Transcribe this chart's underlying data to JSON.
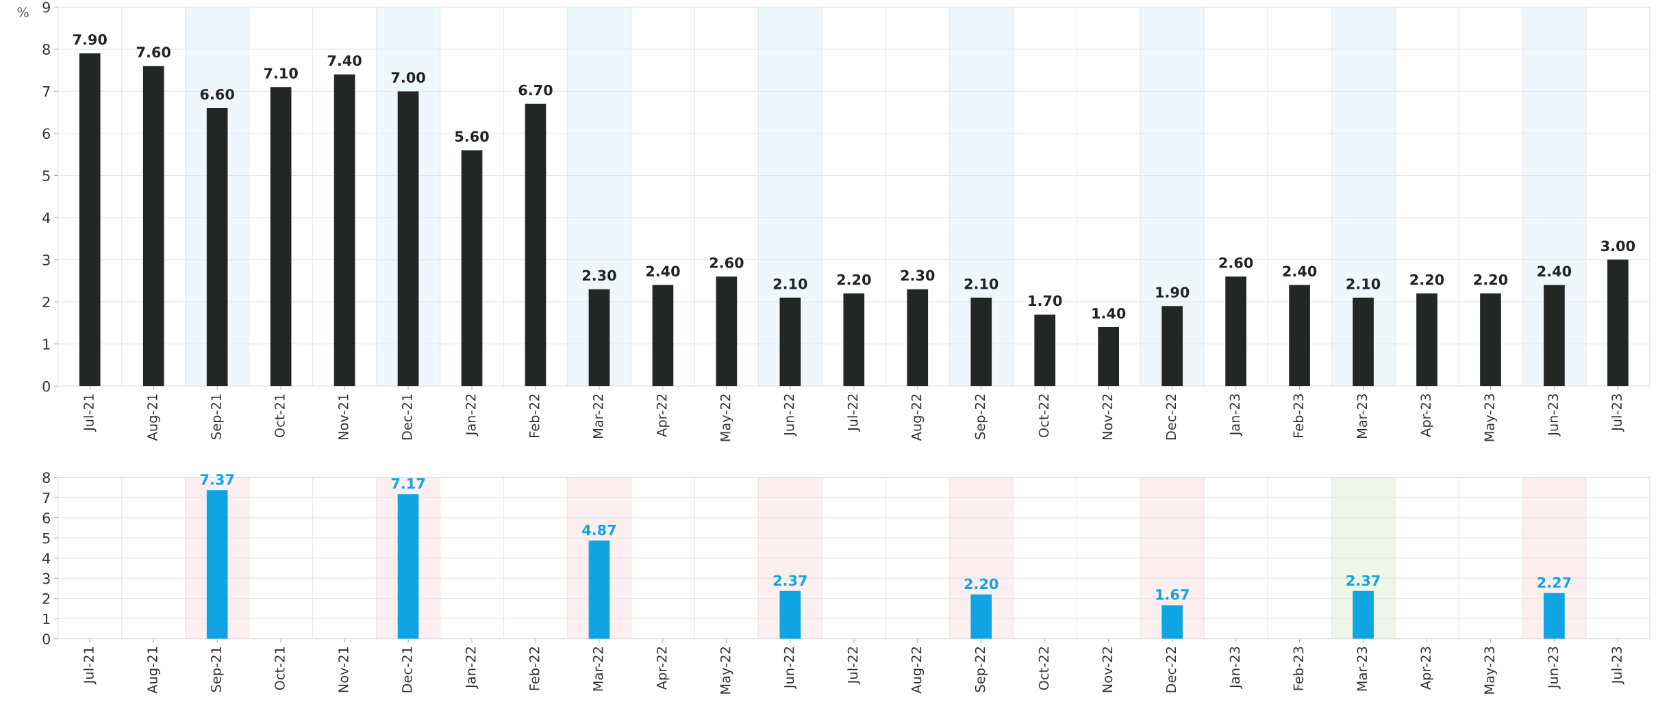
{
  "chart_data": [
    {
      "type": "bar",
      "ylabel": "%",
      "categories": [
        "Jul-21",
        "Aug-21",
        "Sep-21",
        "Oct-21",
        "Nov-21",
        "Dec-21",
        "Jan-22",
        "Feb-22",
        "Mar-22",
        "Apr-22",
        "May-22",
        "Jun-22",
        "Jul-22",
        "Aug-22",
        "Sep-22",
        "Oct-22",
        "Nov-22",
        "Dec-22",
        "Jan-23",
        "Feb-23",
        "Mar-23",
        "Apr-23",
        "May-23",
        "Jun-23",
        "Jul-23"
      ],
      "series": [
        {
          "color": "#222726",
          "values": [
            7.9,
            7.6,
            6.6,
            7.1,
            7.4,
            7.0,
            5.6,
            6.7,
            2.3,
            2.4,
            2.6,
            2.1,
            2.2,
            2.3,
            2.1,
            1.7,
            1.4,
            1.9,
            2.6,
            2.4,
            2.1,
            2.2,
            2.2,
            2.4,
            3.0
          ],
          "value_labels": [
            "7.90",
            "7.60",
            "6.60",
            "7.10",
            "7.40",
            "7.00",
            "5.60",
            "6.70",
            "2.30",
            "2.40",
            "2.60",
            "2.10",
            "2.20",
            "2.30",
            "2.10",
            "1.70",
            "1.40",
            "1.90",
            "2.60",
            "2.40",
            "2.10",
            "2.20",
            "2.20",
            "2.40",
            "3.00"
          ]
        }
      ],
      "ylim": [
        0,
        9
      ],
      "yticks": [
        0,
        1,
        2,
        3,
        4,
        5,
        6,
        7,
        8,
        9
      ],
      "grid": true,
      "bands": [
        {
          "axis": "x",
          "from": "Sep-21",
          "to": "Sep-21",
          "color": "#eef7fc"
        },
        {
          "axis": "x",
          "from": "Dec-21",
          "to": "Dec-21",
          "color": "#eef7fc"
        },
        {
          "axis": "x",
          "from": "Mar-22",
          "to": "Mar-22",
          "color": "#eef7fc"
        },
        {
          "axis": "x",
          "from": "Jun-22",
          "to": "Jun-22",
          "color": "#eef7fc"
        },
        {
          "axis": "x",
          "from": "Sep-22",
          "to": "Sep-22",
          "color": "#eef7fc"
        },
        {
          "axis": "x",
          "from": "Dec-22",
          "to": "Dec-22",
          "color": "#eef7fc"
        },
        {
          "axis": "x",
          "from": "Mar-23",
          "to": "Mar-23",
          "color": "#eef7fc"
        },
        {
          "axis": "x",
          "from": "Jun-23",
          "to": "Jun-23",
          "color": "#eef7fc"
        }
      ]
    },
    {
      "type": "bar",
      "categories": [
        "Jul-21",
        "Aug-21",
        "Sep-21",
        "Oct-21",
        "Nov-21",
        "Dec-21",
        "Jan-22",
        "Feb-22",
        "Mar-22",
        "Apr-22",
        "May-22",
        "Jun-22",
        "Jul-22",
        "Aug-22",
        "Sep-22",
        "Oct-22",
        "Nov-22",
        "Dec-22",
        "Jan-23",
        "Feb-23",
        "Mar-23",
        "Apr-23",
        "May-23",
        "Jun-23",
        "Jul-23"
      ],
      "series": [
        {
          "color": "#0ea5e2",
          "values": [
            null,
            null,
            7.37,
            null,
            null,
            7.17,
            null,
            null,
            4.87,
            null,
            null,
            2.37,
            null,
            null,
            2.2,
            null,
            null,
            1.67,
            null,
            null,
            2.37,
            null,
            null,
            2.27,
            null
          ],
          "value_labels": [
            null,
            null,
            "7.37",
            null,
            null,
            "7.17",
            null,
            null,
            "4.87",
            null,
            null,
            "2.37",
            null,
            null,
            "2.20",
            null,
            null,
            "1.67",
            null,
            null,
            "2.37",
            null,
            null,
            "2.27",
            null
          ]
        }
      ],
      "ylim": [
        0,
        8
      ],
      "yticks": [
        0,
        1,
        2,
        3,
        4,
        5,
        6,
        7,
        8
      ],
      "grid": true,
      "bands": [
        {
          "axis": "x",
          "from": "Sep-21",
          "to": "Sep-21",
          "color": "#fdefef"
        },
        {
          "axis": "x",
          "from": "Dec-21",
          "to": "Dec-21",
          "color": "#fdefef"
        },
        {
          "axis": "x",
          "from": "Mar-22",
          "to": "Mar-22",
          "color": "#fdefef"
        },
        {
          "axis": "x",
          "from": "Jun-22",
          "to": "Jun-22",
          "color": "#fdefef"
        },
        {
          "axis": "x",
          "from": "Sep-22",
          "to": "Sep-22",
          "color": "#fdefef"
        },
        {
          "axis": "x",
          "from": "Dec-22",
          "to": "Dec-22",
          "color": "#fdefef"
        },
        {
          "axis": "x",
          "from": "Mar-23",
          "to": "Mar-23",
          "color": "#eef6ea"
        },
        {
          "axis": "x",
          "from": "Jun-23",
          "to": "Jun-23",
          "color": "#fdefef"
        }
      ]
    }
  ]
}
